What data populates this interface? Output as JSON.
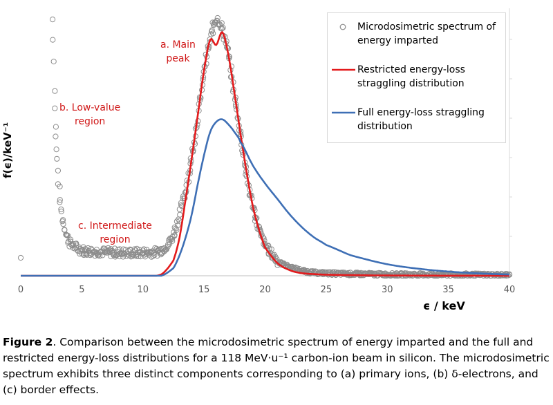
{
  "chart_data": {
    "type": "scatter",
    "xlabel": "ϵ / keV",
    "ylabel": "f(ϵ)/keV⁻¹",
    "xlim": [
      0,
      40
    ],
    "ylim": [
      0,
      1
    ],
    "x_ticks": [
      0,
      5,
      10,
      15,
      20,
      25,
      30,
      35,
      40
    ],
    "y_ticks_labeled": false,
    "grid": false,
    "legend_position": "top-right",
    "series": [
      {
        "name": "Microdosimetric spectrum of energy imparted",
        "style": "open-circle markers",
        "color": "#8c8c8c",
        "x": [
          0.0,
          2.6,
          2.8,
          3.0,
          3.2,
          3.5,
          4.0,
          5.0,
          6.0,
          8.0,
          10.0,
          11.5,
          12.5,
          13.5,
          14.0,
          14.5,
          15.0,
          15.5,
          16.0,
          16.5,
          17.0,
          17.5,
          18.0,
          18.5,
          19.0,
          19.5,
          20.0,
          21.0,
          22.0,
          23.0,
          24.0,
          26.0,
          30.0,
          35.0,
          40.0
        ],
        "y": [
          0.07,
          1.0,
          0.65,
          0.45,
          0.3,
          0.2,
          0.13,
          0.1,
          0.095,
          0.09,
          0.09,
          0.1,
          0.16,
          0.33,
          0.46,
          0.62,
          0.79,
          0.92,
          1.0,
          0.96,
          0.86,
          0.7,
          0.55,
          0.39,
          0.27,
          0.18,
          0.12,
          0.06,
          0.035,
          0.02,
          0.012,
          0.008,
          0.005,
          0.004,
          0.003
        ]
      },
      {
        "name": "Restricted energy-loss straggling distribution",
        "style": "line",
        "color": "#e31a1c",
        "x": [
          0,
          10,
          11.5,
          12.5,
          13.0,
          13.5,
          14.0,
          14.5,
          15.0,
          15.5,
          16.0,
          16.5,
          17.0,
          17.5,
          18.0,
          18.5,
          19.0,
          19.5,
          20.0,
          21.0,
          22.0,
          23.0,
          25.0,
          30.0,
          40.0
        ],
        "y": [
          0,
          0,
          0.005,
          0.06,
          0.15,
          0.3,
          0.46,
          0.63,
          0.8,
          0.92,
          0.9,
          0.95,
          0.86,
          0.71,
          0.55,
          0.4,
          0.27,
          0.18,
          0.11,
          0.05,
          0.022,
          0.01,
          0.004,
          0.001,
          0.0
        ]
      },
      {
        "name": "Full energy-loss straggling distribution",
        "style": "line",
        "color": "#3e6fb5",
        "x": [
          0,
          11.5,
          12.5,
          13.0,
          13.5,
          14.0,
          14.5,
          15.0,
          15.5,
          16.0,
          16.5,
          17.0,
          17.5,
          18.0,
          19.0,
          20.0,
          21.0,
          22.0,
          23.0,
          24.0,
          25.0,
          27.0,
          30.0,
          33.0,
          36.0,
          40.0
        ],
        "y": [
          0,
          0.0,
          0.03,
          0.08,
          0.15,
          0.24,
          0.36,
          0.47,
          0.56,
          0.6,
          0.61,
          0.59,
          0.56,
          0.52,
          0.43,
          0.36,
          0.3,
          0.24,
          0.19,
          0.15,
          0.12,
          0.08,
          0.045,
          0.025,
          0.013,
          0.005
        ]
      }
    ],
    "annotations": [
      {
        "text": "a. Main peak",
        "lines": [
          "a. Main",
          "peak"
        ]
      },
      {
        "text": "b. Low-value region",
        "lines": [
          "b. Low-value",
          "region"
        ]
      },
      {
        "text": "c. Intermediate region",
        "lines": [
          "c. Intermediate",
          "region"
        ]
      }
    ]
  },
  "caption": {
    "label": "Figure 2",
    "text": ". Comparison between the microdosimetric spectrum of energy imparted and the full and restricted energy-loss distributions for a 118 MeV·u⁻¹ carbon-ion beam in silicon. The microdosimetric spectrum exhibits three distinct components corresponding to (a) primary ions, (b) δ-electrons, and (c) border effects."
  }
}
